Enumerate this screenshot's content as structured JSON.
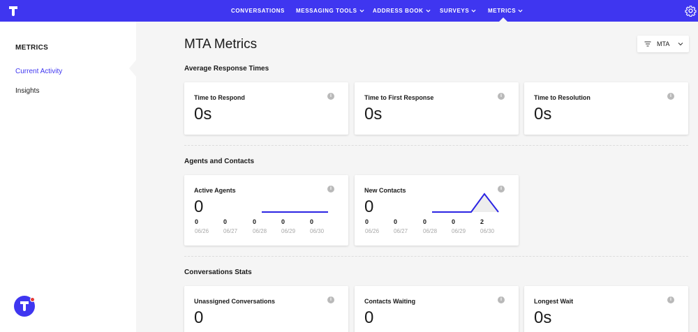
{
  "nav": {
    "items": [
      {
        "label": "CONVERSATIONS",
        "dropdown": false
      },
      {
        "label": "MESSAGING TOOLS",
        "dropdown": true
      },
      {
        "label": "ADDRESS BOOK",
        "dropdown": true
      },
      {
        "label": "SURVEYS",
        "dropdown": true
      },
      {
        "label": "METRICS",
        "dropdown": true,
        "active": true
      }
    ],
    "logo_icon": "app-logo-icon",
    "settings_icon": "gear-icon",
    "accent_color": "#3f36f0"
  },
  "sidebar": {
    "title": "METRICS",
    "items": [
      {
        "label": "Current Activity",
        "active": true
      },
      {
        "label": "Insights",
        "active": false
      }
    ]
  },
  "main": {
    "title": "MTA Metrics",
    "filter": {
      "label": "MTA",
      "icon": "filter-icon"
    },
    "sections": [
      {
        "title": "Average Response Times",
        "cards": [
          {
            "label": "Time to Respond",
            "value": "0s"
          },
          {
            "label": "Time to First Response",
            "value": "0s"
          },
          {
            "label": "Time to Resolution",
            "value": "0s"
          }
        ]
      },
      {
        "title": "Agents and Contacts",
        "cards": [
          {
            "label": "Active Agents",
            "value": "0",
            "trend": {
              "values": [
                "0",
                "0",
                "0",
                "0",
                "0"
              ],
              "dates": [
                "06/26",
                "06/27",
                "06/28",
                "06/29",
                "06/30"
              ]
            }
          },
          {
            "label": "New Contacts",
            "value": "0",
            "trend": {
              "values": [
                "0",
                "0",
                "0",
                "0",
                "2"
              ],
              "dates": [
                "06/26",
                "06/27",
                "06/28",
                "06/29",
                "06/30"
              ]
            }
          }
        ]
      },
      {
        "title": "Conversations Stats",
        "cards": [
          {
            "label": "Unassigned Conversations",
            "value": "0"
          },
          {
            "label": "Contacts Waiting",
            "value": "0"
          },
          {
            "label": "Longest Wait",
            "value": "0s"
          }
        ]
      }
    ],
    "info_icon": "info-icon"
  }
}
